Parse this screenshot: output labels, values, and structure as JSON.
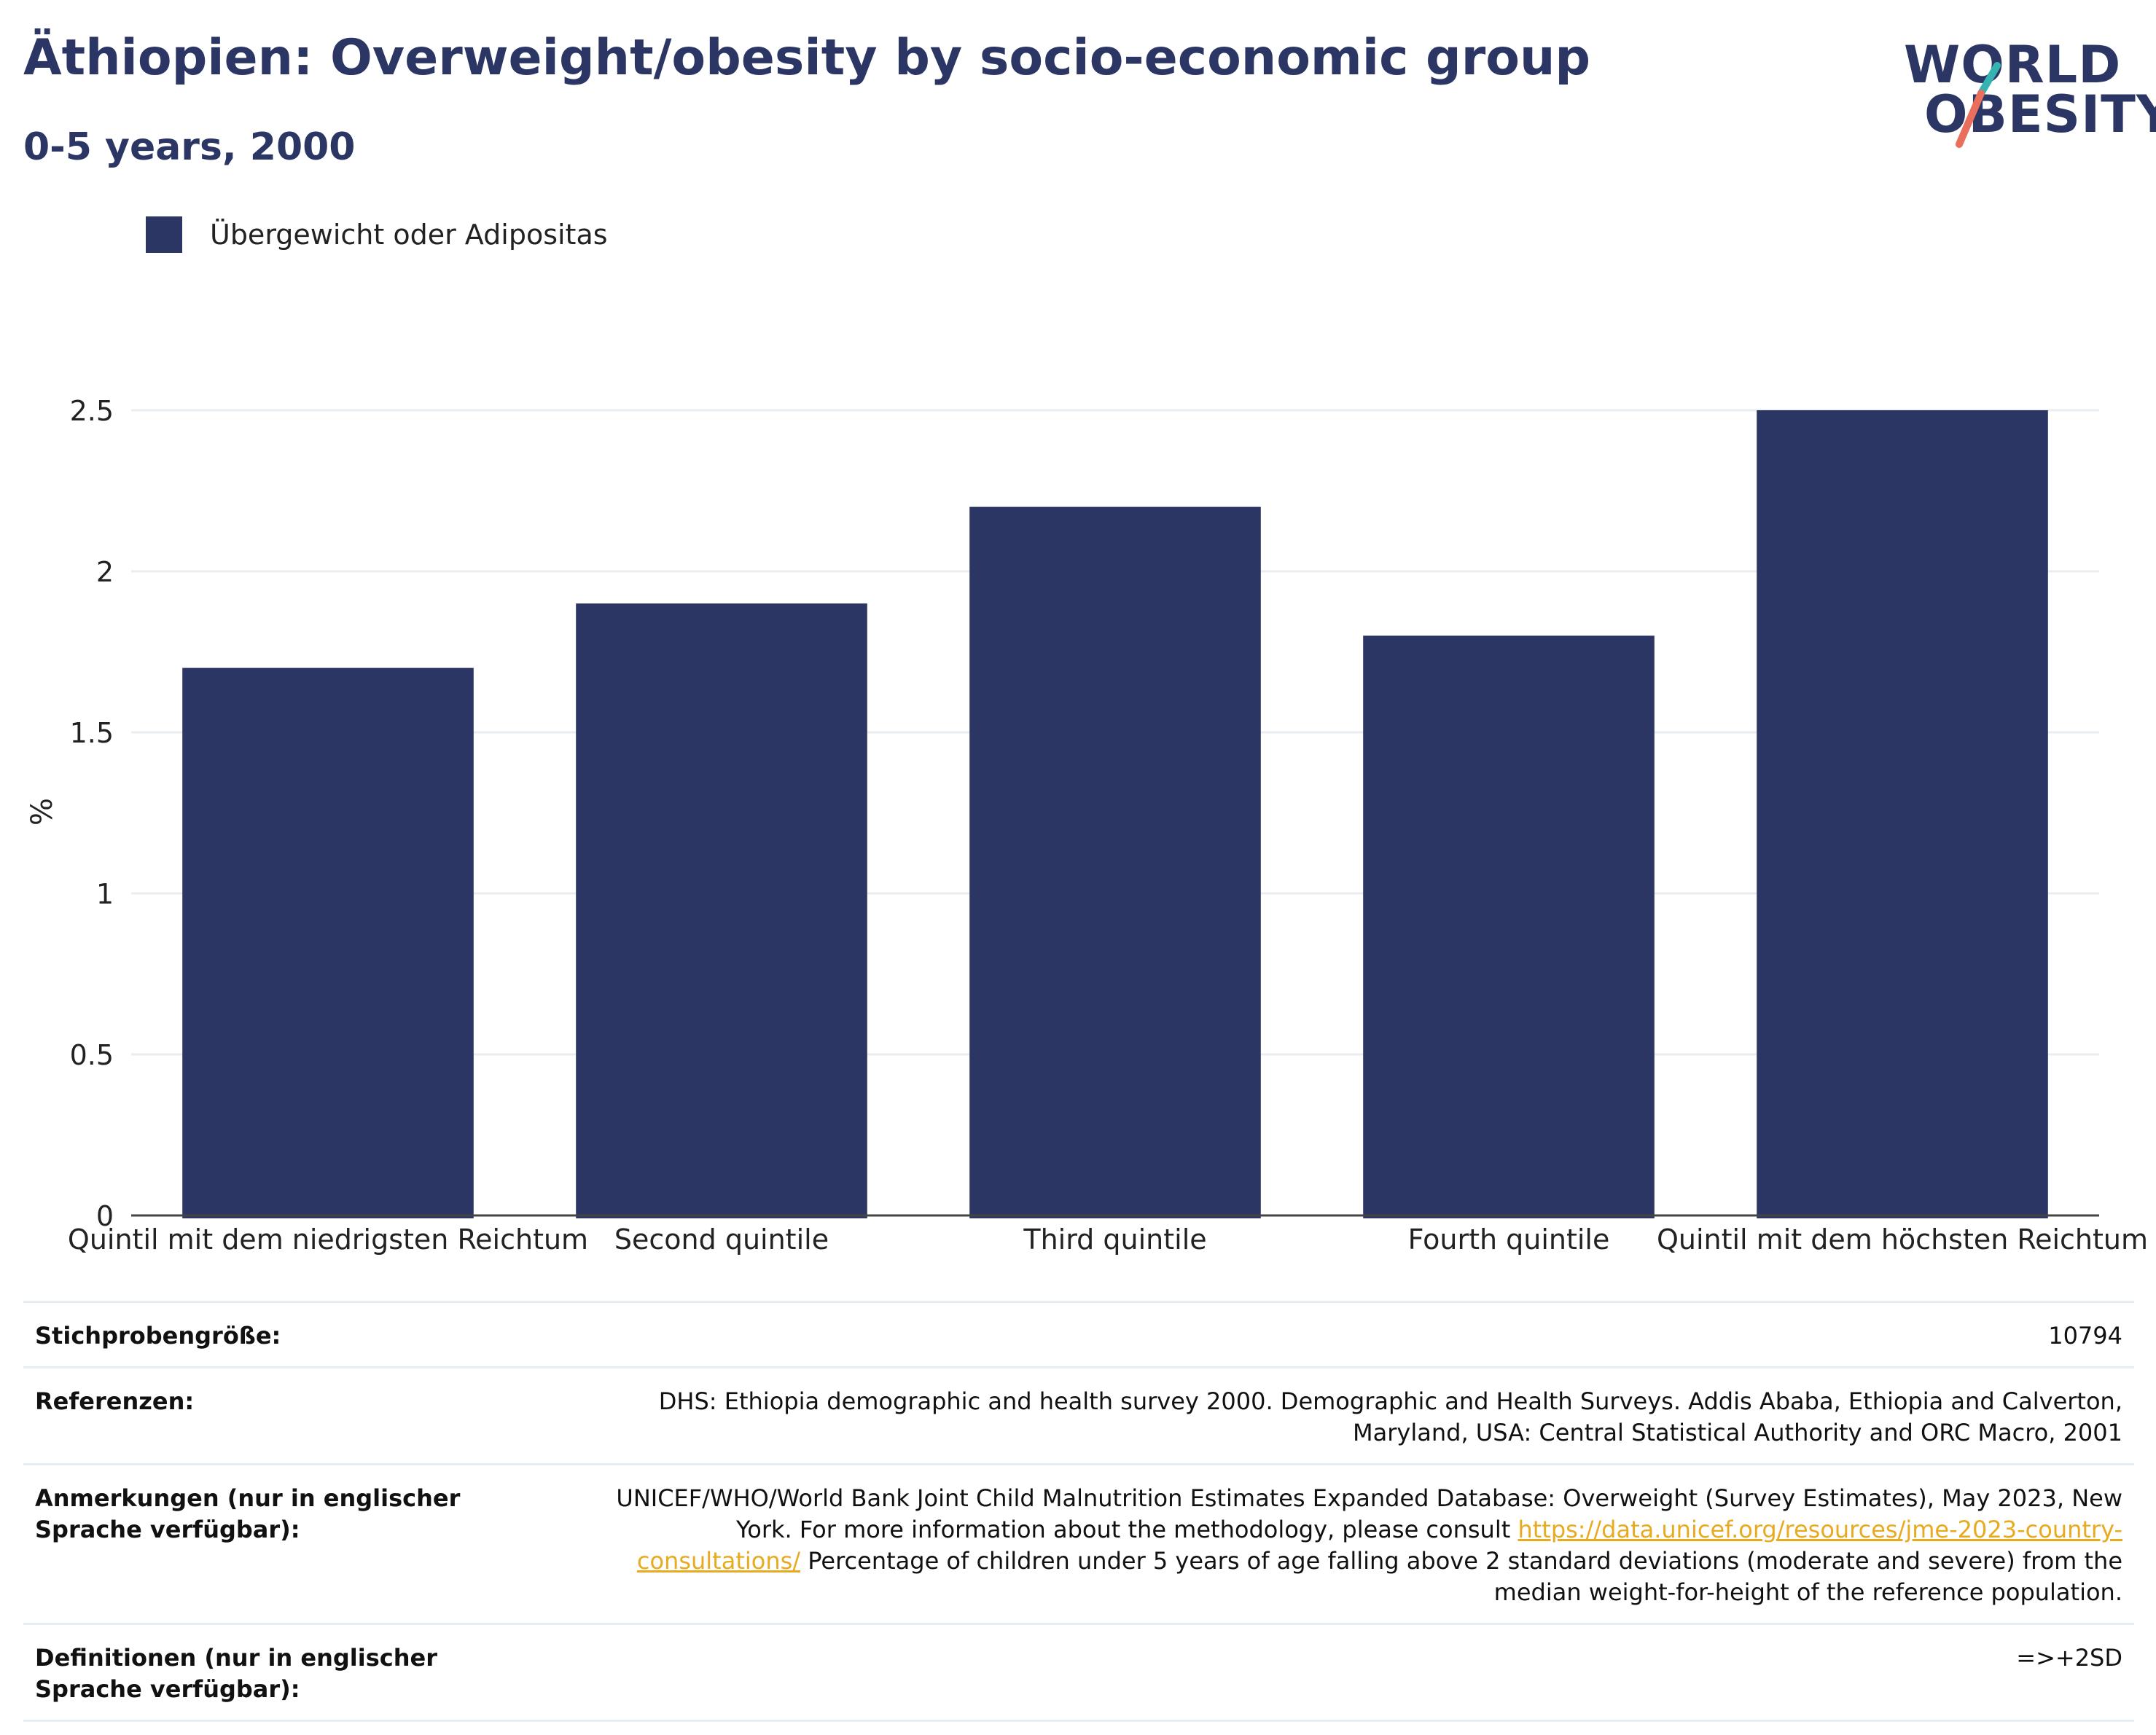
{
  "header": {
    "title": "Äthiopien: Overweight/obesity by socio-economic group",
    "subtitle": "0-5 years, 2000"
  },
  "logo": {
    "line1": "WORLD",
    "line2": "OBESITY"
  },
  "legend": {
    "label": "Übergewicht oder Adipositas"
  },
  "colors": {
    "bar": "#2b3664",
    "grid": "#e8edf1",
    "axis": "#444444",
    "link": "#e8ab1f",
    "logo_teal": "#35b3b0",
    "logo_coral": "#e96e5b"
  },
  "chart_data": {
    "type": "bar",
    "title": "Äthiopien: Overweight/obesity by socio-economic group",
    "subtitle": "0-5 years, 2000",
    "xlabel": "",
    "ylabel": "%",
    "categories": [
      "Quintil mit dem niedrigsten Reichtum",
      "Second quintile",
      "Third quintile",
      "Fourth quintile",
      "Quintil mit dem höchsten Reichtum"
    ],
    "series": [
      {
        "name": "Übergewicht oder Adipositas",
        "values": [
          1.7,
          1.9,
          2.2,
          1.8,
          2.5
        ]
      }
    ],
    "ylim": [
      0,
      2.5
    ],
    "yticks": [
      0,
      0.5,
      1,
      1.5,
      2,
      2.5
    ],
    "ytick_labels": [
      "0",
      "0.5",
      "1",
      "1.5",
      "2",
      "2.5"
    ],
    "grid": true,
    "legend_position": "top-left"
  },
  "meta": {
    "sample_size_label": "Stichprobengröße:",
    "sample_size_value": "10794",
    "references_label": "Referenzen:",
    "references_value": "DHS: Ethiopia demographic and health survey 2000. Demographic and Health Surveys. Addis Ababa, Ethiopia and Calverton, Maryland, USA: Central Statistical Authority and ORC Macro, 2001",
    "notes_label": "Anmerkungen (nur in englischer Sprache verfügbar):",
    "notes_text_before": "UNICEF/WHO/World Bank Joint Child Malnutrition Estimates Expanded Database: Overweight (Survey Estimates), May 2023, New York. For more information about the methodology, please consult ",
    "notes_link": "https://data.unicef.org/resources/jme-2023-country-consultations/",
    "notes_text_after": " Percentage of children under 5 years of age falling above 2 standard deviations (moderate and severe) from the median weight-for-height of the reference population.",
    "definitions_label": "Definitionen (nur in englischer Sprache verfügbar):",
    "definitions_value": "=>+2SD"
  }
}
